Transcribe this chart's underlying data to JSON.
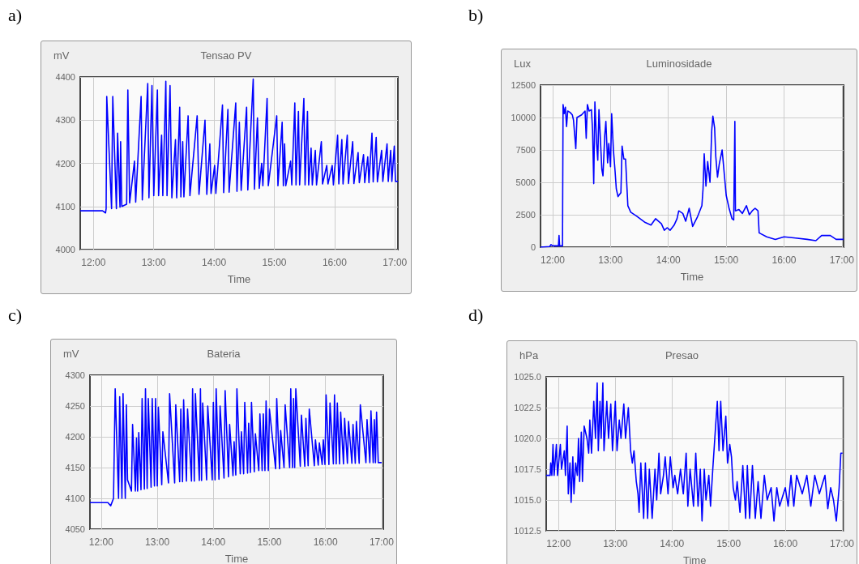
{
  "chart_data": [
    {
      "type": "line",
      "title": "Tensao PV",
      "ylabel": "mV",
      "xlabel": "Time",
      "annotations": [
        "a)"
      ],
      "grid": true,
      "xlim": [
        11.78,
        17.05
      ],
      "ylim": [
        4000,
        4400
      ],
      "yticks": [
        4000,
        4100,
        4200,
        4300,
        4400
      ],
      "xticks": [
        {
          "value": 12,
          "label": "12:00"
        },
        {
          "value": 13,
          "label": "13:00"
        },
        {
          "value": 14,
          "label": "14:00"
        },
        {
          "value": 15,
          "label": "15:00"
        },
        {
          "value": 16,
          "label": "16:00"
        },
        {
          "value": 17,
          "label": "17:00"
        }
      ],
      "series": [
        {
          "color": "#0000ff",
          "x": [
            11.78,
            12.15,
            12.2,
            12.21,
            12.22,
            12.3,
            12.32,
            12.38,
            12.4,
            12.44,
            12.45,
            12.47,
            12.55,
            12.57,
            12.6,
            12.68,
            12.7,
            12.79,
            12.81,
            12.9,
            12.92,
            12.97,
            13.0,
            13.06,
            13.08,
            13.13,
            13.15,
            13.2,
            13.22,
            13.27,
            13.3,
            13.36,
            13.38,
            13.43,
            13.45,
            13.48,
            13.5,
            13.57,
            13.6,
            13.72,
            13.75,
            13.85,
            13.88,
            13.93,
            13.95,
            14.01,
            14.03,
            14.14,
            14.16,
            14.23,
            14.25,
            14.36,
            14.38,
            14.42,
            14.45,
            14.54,
            14.56,
            14.65,
            14.67,
            14.72,
            14.75,
            14.79,
            14.81,
            14.88,
            14.9,
            15.04,
            15.06,
            15.13,
            15.15,
            15.17,
            15.19,
            15.27,
            15.29,
            15.34,
            15.36,
            15.4,
            15.42,
            15.49,
            15.51,
            15.55,
            15.57,
            15.61,
            15.63,
            15.68,
            15.7,
            15.78,
            15.8,
            15.87,
            15.89,
            15.96,
            15.98,
            16.05,
            16.07,
            16.12,
            16.14,
            16.21,
            16.23,
            16.3,
            16.32,
            16.39,
            16.41,
            16.48,
            16.5,
            16.55,
            16.57,
            16.62,
            16.64,
            16.69,
            16.71,
            16.78,
            16.8,
            16.87,
            16.89,
            16.93,
            16.95,
            16.99,
            17.01,
            17.05
          ],
          "values": [
            4090,
            4090,
            4085,
            4095,
            4355,
            4095,
            4355,
            4095,
            4270,
            4098,
            4250,
            4100,
            4105,
            4370,
            4108,
            4205,
            4110,
            4355,
            4115,
            4385,
            4120,
            4380,
            4125,
            4370,
            4125,
            4265,
            4125,
            4390,
            4125,
            4380,
            4120,
            4255,
            4120,
            4330,
            4122,
            4250,
            4122,
            4310,
            4125,
            4310,
            4128,
            4300,
            4128,
            4245,
            4130,
            4195,
            4130,
            4335,
            4132,
            4325,
            4133,
            4340,
            4135,
            4295,
            4137,
            4330,
            4138,
            4395,
            4140,
            4305,
            4142,
            4200,
            4148,
            4350,
            4148,
            4310,
            4148,
            4295,
            4148,
            4245,
            4148,
            4205,
            4150,
            4340,
            4150,
            4320,
            4150,
            4350,
            4150,
            4320,
            4150,
            4235,
            4150,
            4230,
            4150,
            4250,
            4152,
            4195,
            4152,
            4195,
            4150,
            4265,
            4152,
            4255,
            4152,
            4265,
            4153,
            4250,
            4153,
            4225,
            4155,
            4220,
            4155,
            4215,
            4155,
            4270,
            4157,
            4260,
            4157,
            4230,
            4158,
            4245,
            4158,
            4230,
            4158,
            4240,
            4158,
            4158
          ]
        }
      ]
    },
    {
      "type": "line",
      "title": "Luminosidade",
      "ylabel": "Lux",
      "xlabel": "Time",
      "annotations": [
        "b)"
      ],
      "grid": true,
      "xlim": [
        11.79,
        17.03
      ],
      "ylim": [
        0,
        12500
      ],
      "yticks": [
        0,
        2500,
        5000,
        7500,
        10000,
        12500
      ],
      "xticks": [
        {
          "value": 12,
          "label": "12:00"
        },
        {
          "value": 13,
          "label": "13:00"
        },
        {
          "value": 14,
          "label": "14:00"
        },
        {
          "value": 15,
          "label": "15:00"
        },
        {
          "value": 16,
          "label": "16:00"
        },
        {
          "value": 17,
          "label": "17:00"
        }
      ],
      "series": [
        {
          "color": "#0000ff",
          "x": [
            11.79,
            11.95,
            11.97,
            12.0,
            12.1,
            12.11,
            12.12,
            12.17,
            12.18,
            12.2,
            12.22,
            12.24,
            12.26,
            12.3,
            12.34,
            12.36,
            12.4,
            12.42,
            12.5,
            12.56,
            12.58,
            12.6,
            12.63,
            12.67,
            12.69,
            12.71,
            12.73,
            12.76,
            12.78,
            12.8,
            12.82,
            12.85,
            12.87,
            12.9,
            12.92,
            12.95,
            12.97,
            13.0,
            13.02,
            13.05,
            13.08,
            13.1,
            13.13,
            13.18,
            13.2,
            13.23,
            13.26,
            13.3,
            13.35,
            13.45,
            13.6,
            13.7,
            13.78,
            13.88,
            13.93,
            13.98,
            14.03,
            14.1,
            14.15,
            14.18,
            14.25,
            14.3,
            14.36,
            14.42,
            14.5,
            14.58,
            14.6,
            14.62,
            14.65,
            14.68,
            14.72,
            14.75,
            14.77,
            14.8,
            14.82,
            14.85,
            14.88,
            14.93,
            14.97,
            15.0,
            15.05,
            15.1,
            15.13,
            15.15,
            15.16,
            15.22,
            15.28,
            15.35,
            15.4,
            15.45,
            15.5,
            15.55,
            15.57,
            15.7,
            15.85,
            16.0,
            16.2,
            16.4,
            16.55,
            16.65,
            16.8,
            16.9,
            17.03
          ],
          "values": [
            0,
            50,
            200,
            100,
            100,
            900,
            100,
            100,
            11000,
            10300,
            10800,
            9300,
            10500,
            10400,
            10200,
            9800,
            7600,
            10000,
            10200,
            10500,
            8400,
            11000,
            10500,
            10600,
            9000,
            4900,
            11200,
            8000,
            6700,
            10600,
            8800,
            6000,
            5500,
            8600,
            9700,
            6500,
            8000,
            6200,
            10300,
            7500,
            5800,
            4500,
            3900,
            4200,
            7800,
            6800,
            6800,
            3200,
            2700,
            2400,
            1900,
            1700,
            2200,
            1800,
            1300,
            1500,
            1300,
            1700,
            2200,
            2800,
            2600,
            2000,
            3000,
            1600,
            2300,
            3200,
            4500,
            7200,
            4700,
            6600,
            5000,
            9000,
            10100,
            9200,
            7000,
            5400,
            6400,
            7500,
            5500,
            4000,
            3000,
            2200,
            2100,
            9700,
            2800,
            2900,
            2600,
            3200,
            2500,
            2800,
            3000,
            2800,
            1100,
            800,
            600,
            800,
            700,
            600,
            500,
            900,
            900,
            600,
            600
          ]
        }
      ]
    },
    {
      "type": "line",
      "title": "Bateria",
      "ylabel": "mV",
      "xlabel": "Time",
      "annotations": [
        "c)"
      ],
      "grid": true,
      "xlim": [
        11.8,
        17.03
      ],
      "ylim": [
        4050,
        4300
      ],
      "yticks": [
        4050,
        4100,
        4150,
        4200,
        4250,
        4300
      ],
      "xticks": [
        {
          "value": 12,
          "label": "12:00"
        },
        {
          "value": 13,
          "label": "13:00"
        },
        {
          "value": 14,
          "label": "14:00"
        },
        {
          "value": 15,
          "label": "15:00"
        },
        {
          "value": 16,
          "label": "16:00"
        },
        {
          "value": 17,
          "label": "17:00"
        }
      ],
      "series": [
        {
          "color": "#0000ff",
          "x": [
            11.8,
            12.12,
            12.17,
            12.22,
            12.25,
            12.31,
            12.33,
            12.37,
            12.39,
            12.43,
            12.45,
            12.47,
            12.54,
            12.56,
            12.61,
            12.63,
            12.65,
            12.67,
            12.71,
            12.73,
            12.77,
            12.79,
            12.82,
            12.84,
            12.89,
            12.91,
            12.95,
            12.97,
            13.0,
            13.02,
            13.08,
            13.1,
            13.2,
            13.22,
            13.31,
            13.33,
            13.4,
            13.42,
            13.45,
            13.47,
            13.52,
            13.54,
            13.61,
            13.63,
            13.66,
            13.68,
            13.75,
            13.77,
            13.79,
            13.81,
            13.88,
            13.9,
            13.98,
            14.0,
            14.03,
            14.05,
            14.1,
            14.12,
            14.19,
            14.21,
            14.27,
            14.29,
            14.35,
            14.37,
            14.4,
            14.42,
            14.48,
            14.5,
            14.54,
            14.56,
            14.61,
            14.63,
            14.66,
            14.68,
            14.73,
            14.75,
            14.81,
            14.83,
            14.87,
            14.89,
            14.92,
            14.94,
            14.98,
            15.0,
            15.11,
            15.13,
            15.18,
            15.2,
            15.26,
            15.28,
            15.36,
            15.38,
            15.41,
            15.43,
            15.45,
            15.47,
            15.55,
            15.57,
            15.63,
            15.65,
            15.69,
            15.71,
            15.8,
            15.82,
            15.87,
            15.89,
            15.94,
            15.96,
            15.99,
            16.01,
            16.06,
            16.08,
            16.14,
            16.16,
            16.19,
            16.21,
            16.25,
            16.27,
            16.32,
            16.34,
            16.39,
            16.41,
            16.47,
            16.49,
            16.53,
            16.55,
            16.6,
            16.62,
            16.72,
            16.74,
            16.79,
            16.81,
            16.85,
            16.87,
            16.89,
            16.91,
            16.94,
            17.0
          ],
          "values": [
            4093,
            4093,
            4088,
            4100,
            4278,
            4100,
            4265,
            4100,
            4270,
            4100,
            4252,
            4130,
            4112,
            4220,
            4112,
            4198,
            4112,
            4207,
            4114,
            4262,
            4115,
            4278,
            4116,
            4262,
            4118,
            4262,
            4120,
            4262,
            4120,
            4248,
            4122,
            4208,
            4125,
            4270,
            4125,
            4252,
            4127,
            4245,
            4127,
            4260,
            4128,
            4245,
            4128,
            4278,
            4128,
            4270,
            4129,
            4278,
            4129,
            4255,
            4130,
            4250,
            4130,
            4256,
            4130,
            4278,
            4131,
            4250,
            4133,
            4275,
            4135,
            4220,
            4137,
            4192,
            4138,
            4278,
            4140,
            4208,
            4140,
            4256,
            4141,
            4222,
            4142,
            4256,
            4143,
            4205,
            4145,
            4237,
            4145,
            4237,
            4145,
            4258,
            4145,
            4245,
            4148,
            4262,
            4148,
            4210,
            4150,
            4252,
            4150,
            4278,
            4150,
            4262,
            4150,
            4278,
            4152,
            4235,
            4152,
            4230,
            4153,
            4245,
            4153,
            4195,
            4154,
            4190,
            4155,
            4195,
            4155,
            4268,
            4155,
            4255,
            4156,
            4268,
            4156,
            4255,
            4156,
            4240,
            4156,
            4230,
            4157,
            4225,
            4157,
            4220,
            4157,
            4225,
            4157,
            4252,
            4158,
            4228,
            4158,
            4242,
            4158,
            4228,
            4158,
            4240,
            4158,
            4158
          ]
        }
      ]
    },
    {
      "type": "line",
      "title": "Presao",
      "ylabel": "hPa",
      "xlabel": "Time",
      "annotations": [
        "d)"
      ],
      "grid": true,
      "xlim": [
        11.78,
        17.02
      ],
      "ylim": [
        1012.5,
        1025
      ],
      "yticks": [
        {
          "value": 1012.5,
          "label": "1012.5"
        },
        {
          "value": 1015,
          "label": "1015.0"
        },
        {
          "value": 1017.5,
          "label": "1017.5"
        },
        {
          "value": 1020,
          "label": "1020.0"
        },
        {
          "value": 1022.5,
          "label": "1022.5"
        },
        {
          "value": 1025,
          "label": "1025.0"
        }
      ],
      "xticks": [
        {
          "value": 12,
          "label": "12:00"
        },
        {
          "value": 13,
          "label": "13:00"
        },
        {
          "value": 14,
          "label": "14:00"
        },
        {
          "value": 15,
          "label": "15:00"
        },
        {
          "value": 16,
          "label": "16:00"
        },
        {
          "value": 17,
          "label": "17:00"
        }
      ],
      "series": [
        {
          "color": "#0000ff",
          "x": [
            11.78,
            11.85,
            11.86,
            11.88,
            11.9,
            11.92,
            11.96,
            11.98,
            12.03,
            12.05,
            12.1,
            12.12,
            12.15,
            12.17,
            12.2,
            12.22,
            12.25,
            12.27,
            12.3,
            12.33,
            12.35,
            12.37,
            12.4,
            12.42,
            12.45,
            12.5,
            12.53,
            12.55,
            12.58,
            12.62,
            12.65,
            12.68,
            12.7,
            12.73,
            12.75,
            12.78,
            12.8,
            12.85,
            12.88,
            12.92,
            12.95,
            13.0,
            13.03,
            13.07,
            13.1,
            13.15,
            13.18,
            13.23,
            13.27,
            13.3,
            13.33,
            13.37,
            13.4,
            13.42,
            13.45,
            13.5,
            13.53,
            13.57,
            13.6,
            13.65,
            13.7,
            13.73,
            13.77,
            13.8,
            13.85,
            13.88,
            13.93,
            13.97,
            14.02,
            14.05,
            14.1,
            14.15,
            14.2,
            14.25,
            14.28,
            14.32,
            14.38,
            14.42,
            14.46,
            14.5,
            14.53,
            14.57,
            14.6,
            14.65,
            14.68,
            14.72,
            14.77,
            14.8,
            14.83,
            14.86,
            14.9,
            14.95,
            14.98,
            15.02,
            15.05,
            15.08,
            15.12,
            15.15,
            15.2,
            15.25,
            15.3,
            15.33,
            15.37,
            15.42,
            15.47,
            15.52,
            15.57,
            15.63,
            15.68,
            15.75,
            15.8,
            15.85,
            15.9,
            16.0,
            16.05,
            16.1,
            16.15,
            16.2,
            16.3,
            16.38,
            16.45,
            16.52,
            16.6,
            16.7,
            16.75,
            16.8,
            16.85,
            16.9,
            16.95,
            16.98,
            17.01
          ],
          "values": [
            1017,
            1017,
            1018,
            1017,
            1019.5,
            1017,
            1019.5,
            1017,
            1019.5,
            1017.5,
            1019,
            1017,
            1021,
            1015.5,
            1018,
            1014.8,
            1018.5,
            1015.5,
            1018,
            1017,
            1020,
            1016.5,
            1020.5,
            1016.5,
            1021,
            1020,
            1018.8,
            1021.5,
            1018.8,
            1023,
            1020,
            1024.5,
            1019,
            1023,
            1020,
            1024.5,
            1019,
            1023,
            1020,
            1022.8,
            1019,
            1023,
            1019,
            1021.5,
            1020,
            1022.8,
            1020,
            1022.5,
            1019,
            1018,
            1019,
            1016.5,
            1015.5,
            1014,
            1018,
            1013.5,
            1018,
            1013.5,
            1017.5,
            1013.5,
            1017.5,
            1015,
            1018.8,
            1015.5,
            1017,
            1018.5,
            1015.5,
            1018.5,
            1016,
            1017,
            1015.5,
            1017.5,
            1015.5,
            1018.8,
            1014.5,
            1017.5,
            1014.5,
            1018.8,
            1014.5,
            1017.5,
            1013.3,
            1017.5,
            1015,
            1017,
            1014.5,
            1017.5,
            1021,
            1023,
            1019,
            1023,
            1019,
            1021.8,
            1018,
            1019.5,
            1018.5,
            1016,
            1015,
            1016.5,
            1014,
            1017.8,
            1013.5,
            1017.8,
            1013.5,
            1017.8,
            1013.5,
            1016.5,
            1013.5,
            1017,
            1015,
            1016,
            1013.3,
            1016,
            1014.5,
            1016,
            1014.5,
            1017,
            1014.5,
            1017,
            1015.5,
            1017,
            1014.5,
            1017,
            1015.5,
            1017,
            1014.3,
            1016,
            1015,
            1013.3,
            1016,
            1018.8,
            1018.8
          ]
        }
      ]
    }
  ]
}
